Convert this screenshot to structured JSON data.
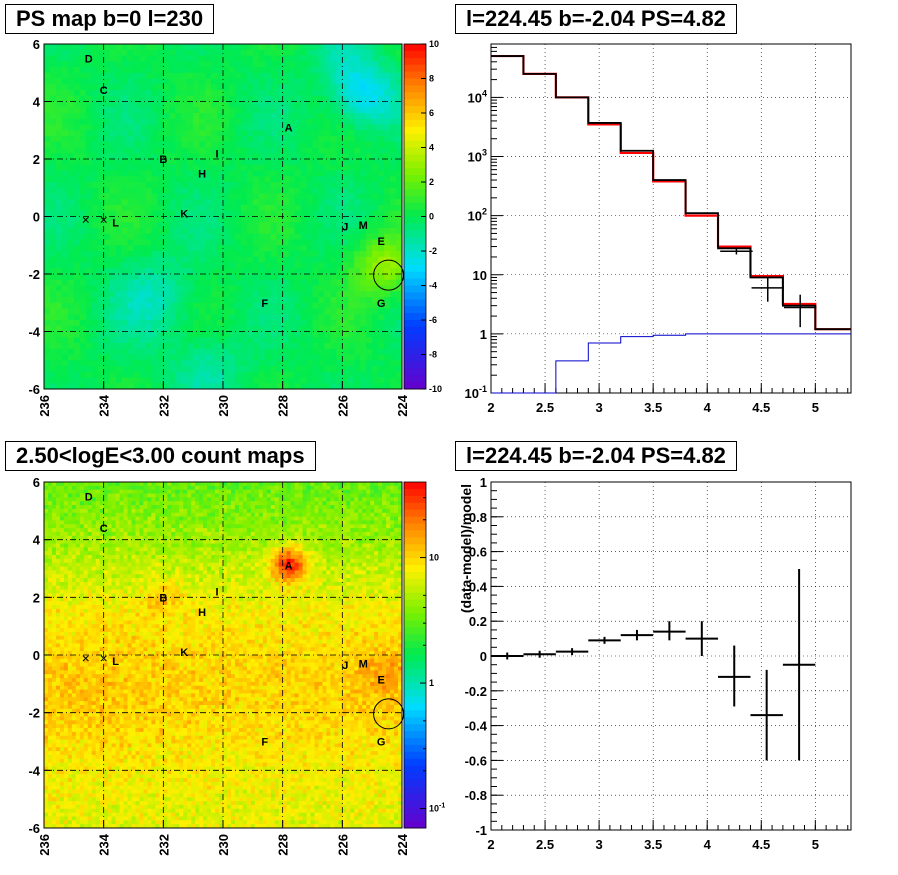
{
  "panels": {
    "tl_title": "PS map b=0 l=230",
    "tr_title": "l=224.45 b=-2.04 PS=4.82",
    "bl_title": "2.50<logE<3.00 count maps",
    "br_title": "l=224.45 b=-2.04 PS=4.82"
  },
  "chart_data": [
    {
      "type": "heatmap",
      "title": "PS map b=0 l=230",
      "x_ticks": [
        "236",
        "234",
        "232",
        "230",
        "228",
        "226",
        "224"
      ],
      "xlim": [
        236,
        224
      ],
      "y_ticks": [
        "-6",
        "-4",
        "-2",
        "0",
        "2",
        "4",
        "6"
      ],
      "ylim": [
        -6,
        6
      ],
      "colorbar_ticks": [
        "10",
        "8",
        "6",
        "4",
        "2",
        "0",
        "-2",
        "-4",
        "-6",
        "-8",
        "-10"
      ],
      "colorbar_range": [
        -10,
        10
      ],
      "grid": true,
      "sources": [
        {
          "label": "A",
          "l": 227.8,
          "b": 3.1
        },
        {
          "label": "B",
          "l": 232.0,
          "b": 2.0
        },
        {
          "label": "C",
          "l": 234.0,
          "b": 4.4
        },
        {
          "label": "D",
          "l": 234.5,
          "b": 5.5
        },
        {
          "label": "E",
          "l": 224.7,
          "b": -0.85
        },
        {
          "label": "F",
          "l": 228.6,
          "b": -3.0
        },
        {
          "label": "G",
          "l": 224.7,
          "b": -3.0
        },
        {
          "label": "H",
          "l": 230.7,
          "b": 1.5
        },
        {
          "label": "I",
          "l": 230.2,
          "b": 2.2
        },
        {
          "label": "J",
          "l": 225.9,
          "b": -0.35
        },
        {
          "label": "K",
          "l": 231.3,
          "b": 0.1
        },
        {
          "label": "L",
          "l": 233.6,
          "b": -0.2
        },
        {
          "label": "M",
          "l": 225.3,
          "b": -0.3
        }
      ],
      "x_marks": [
        {
          "l": 234.6,
          "b": -0.1
        },
        {
          "l": 234.0,
          "b": -0.1
        }
      ],
      "circle": {
        "l": 224.45,
        "b": -2.04
      }
    },
    {
      "type": "line",
      "title": "l=224.45 b=-2.04 PS=4.82",
      "x_ticks": [
        "2",
        "2.5",
        "3",
        "3.5",
        "4",
        "4.5",
        "5"
      ],
      "xlim": [
        2.0,
        5.33
      ],
      "y_scale": "log",
      "ylim": [
        0.1,
        80000
      ],
      "y_ticks": [
        "10^-1",
        "1",
        "10",
        "10^2",
        "10^3",
        "10^4"
      ],
      "grid": true,
      "edges": [
        2.0,
        2.3,
        2.6,
        2.9,
        3.2,
        3.5,
        3.8,
        4.1,
        4.4,
        4.7,
        5.0,
        5.33
      ],
      "series": [
        {
          "color": "#ff0000",
          "values": [
            50000,
            25000,
            10000,
            3500,
            1150,
            380,
            100,
            30,
            9.5,
            3.2,
            1.2
          ]
        },
        {
          "color": "#000000",
          "values": [
            50000,
            25000,
            10000,
            3700,
            1250,
            400,
            110,
            28,
            9.0,
            3.0,
            1.2
          ]
        },
        {
          "color": "#0000cc",
          "values": [
            0.1,
            0.1,
            0.35,
            0.7,
            0.9,
            0.95,
            1.0,
            1.0,
            1.0,
            1.0,
            1.0
          ]
        }
      ],
      "data_points": [
        {
          "x": 4.27,
          "y": 25,
          "ylo": 22,
          "yhi": 28,
          "xerr": 0.15
        },
        {
          "x": 4.56,
          "y": 6,
          "ylo": 3.5,
          "yhi": 9,
          "xerr": 0.15
        },
        {
          "x": 4.86,
          "y": 2.8,
          "ylo": 1.3,
          "yhi": 4.6,
          "xerr": 0.15
        }
      ]
    },
    {
      "type": "heatmap",
      "title": "2.50<logE<3.00 count maps",
      "x_ticks": [
        "236",
        "234",
        "232",
        "230",
        "228",
        "226",
        "224"
      ],
      "xlim": [
        236,
        224
      ],
      "y_ticks": [
        "-6",
        "-4",
        "-2",
        "0",
        "2",
        "4",
        "6"
      ],
      "ylim": [
        -6,
        6
      ],
      "colorbar_scale": "log",
      "colorbar_ticks": [
        "10",
        "1",
        "10^-1"
      ],
      "colorbar_range": [
        0.07,
        40
      ],
      "grid": true,
      "sources": [
        {
          "label": "A",
          "l": 227.8,
          "b": 3.1
        },
        {
          "label": "B",
          "l": 232.0,
          "b": 2.0
        },
        {
          "label": "C",
          "l": 234.0,
          "b": 4.4
        },
        {
          "label": "D",
          "l": 234.5,
          "b": 5.5
        },
        {
          "label": "E",
          "l": 224.7,
          "b": -0.85
        },
        {
          "label": "F",
          "l": 228.6,
          "b": -3.0
        },
        {
          "label": "G",
          "l": 224.7,
          "b": -3.0
        },
        {
          "label": "H",
          "l": 230.7,
          "b": 1.5
        },
        {
          "label": "I",
          "l": 230.2,
          "b": 2.2
        },
        {
          "label": "J",
          "l": 225.9,
          "b": -0.35
        },
        {
          "label": "K",
          "l": 231.3,
          "b": 0.1
        },
        {
          "label": "L",
          "l": 233.6,
          "b": -0.2
        },
        {
          "label": "M",
          "l": 225.3,
          "b": -0.3
        }
      ],
      "x_marks": [
        {
          "l": 234.6,
          "b": -0.1
        },
        {
          "l": 234.0,
          "b": -0.1
        }
      ],
      "circle": {
        "l": 224.45,
        "b": -2.04
      }
    },
    {
      "type": "scatter",
      "title": "l=224.45 b=-2.04 PS=4.82",
      "ylabel": "(data-model)/model",
      "x_ticks": [
        "2",
        "2.5",
        "3",
        "3.5",
        "4",
        "4.5",
        "5"
      ],
      "xlim": [
        2.0,
        5.33
      ],
      "ylim": [
        -1,
        1
      ],
      "y_ticks": [
        "-1",
        "-0.8",
        "-0.6",
        "-0.4",
        "-0.2",
        "0",
        "0.2",
        "0.4",
        "0.6",
        "0.8",
        "1"
      ],
      "grid": true,
      "points": [
        {
          "x": 2.15,
          "y": 0.0,
          "ylo": -0.02,
          "yhi": 0.02,
          "xerr": 0.15
        },
        {
          "x": 2.45,
          "y": 0.01,
          "ylo": -0.01,
          "yhi": 0.03,
          "xerr": 0.15
        },
        {
          "x": 2.75,
          "y": 0.025,
          "ylo": 0.005,
          "yhi": 0.045,
          "xerr": 0.15
        },
        {
          "x": 3.05,
          "y": 0.09,
          "ylo": 0.07,
          "yhi": 0.11,
          "xerr": 0.15
        },
        {
          "x": 3.35,
          "y": 0.12,
          "ylo": 0.09,
          "yhi": 0.15,
          "xerr": 0.15
        },
        {
          "x": 3.65,
          "y": 0.14,
          "ylo": 0.09,
          "yhi": 0.2,
          "xerr": 0.15
        },
        {
          "x": 3.95,
          "y": 0.1,
          "ylo": 0.0,
          "yhi": 0.2,
          "xerr": 0.15
        },
        {
          "x": 4.25,
          "y": -0.12,
          "ylo": -0.29,
          "yhi": 0.06,
          "xerr": 0.15
        },
        {
          "x": 4.55,
          "y": -0.34,
          "ylo": -0.6,
          "yhi": -0.08,
          "xerr": 0.15
        },
        {
          "x": 4.85,
          "y": -0.05,
          "ylo": -0.6,
          "yhi": 0.5,
          "xerr": 0.15
        }
      ]
    }
  ]
}
